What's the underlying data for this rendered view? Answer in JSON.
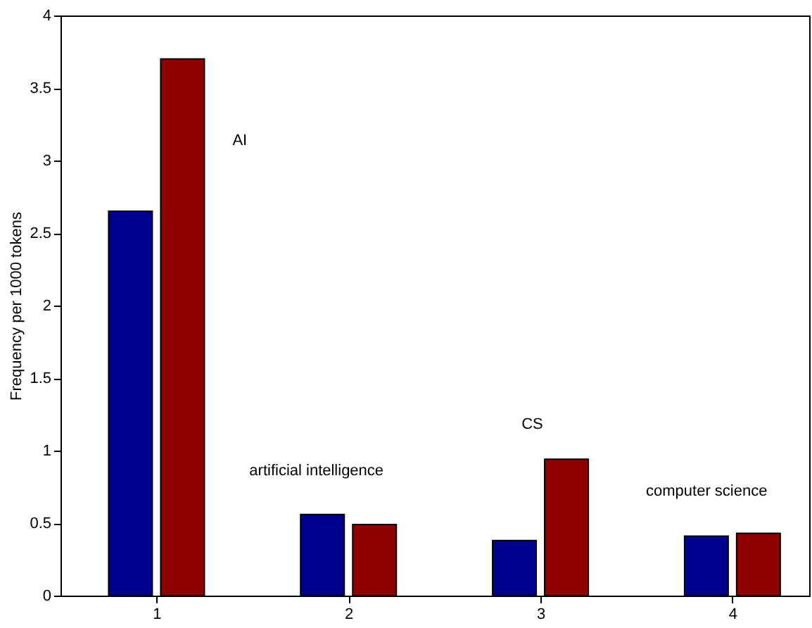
{
  "chart_data": {
    "type": "bar",
    "ylabel": "Frequency per 1000 tokens",
    "x": [
      1,
      2,
      3,
      4
    ],
    "series": [
      {
        "color": "#00008f",
        "values": [
          2.65,
          0.56,
          0.38,
          0.41
        ]
      },
      {
        "color": "#8f0000",
        "values": [
          3.7,
          0.49,
          0.94,
          0.43
        ]
      }
    ],
    "xlim": [
      0.5,
      4.4
    ],
    "xticks": [
      1,
      2,
      3,
      4
    ],
    "ylim": [
      0,
      4
    ],
    "yticks": [
      0,
      0.5,
      1,
      1.5,
      2,
      2.5,
      3,
      3.5,
      4
    ],
    "grid": false,
    "annotations": [
      "AI",
      "artificial intelligence",
      "CS",
      "computer science"
    ]
  }
}
